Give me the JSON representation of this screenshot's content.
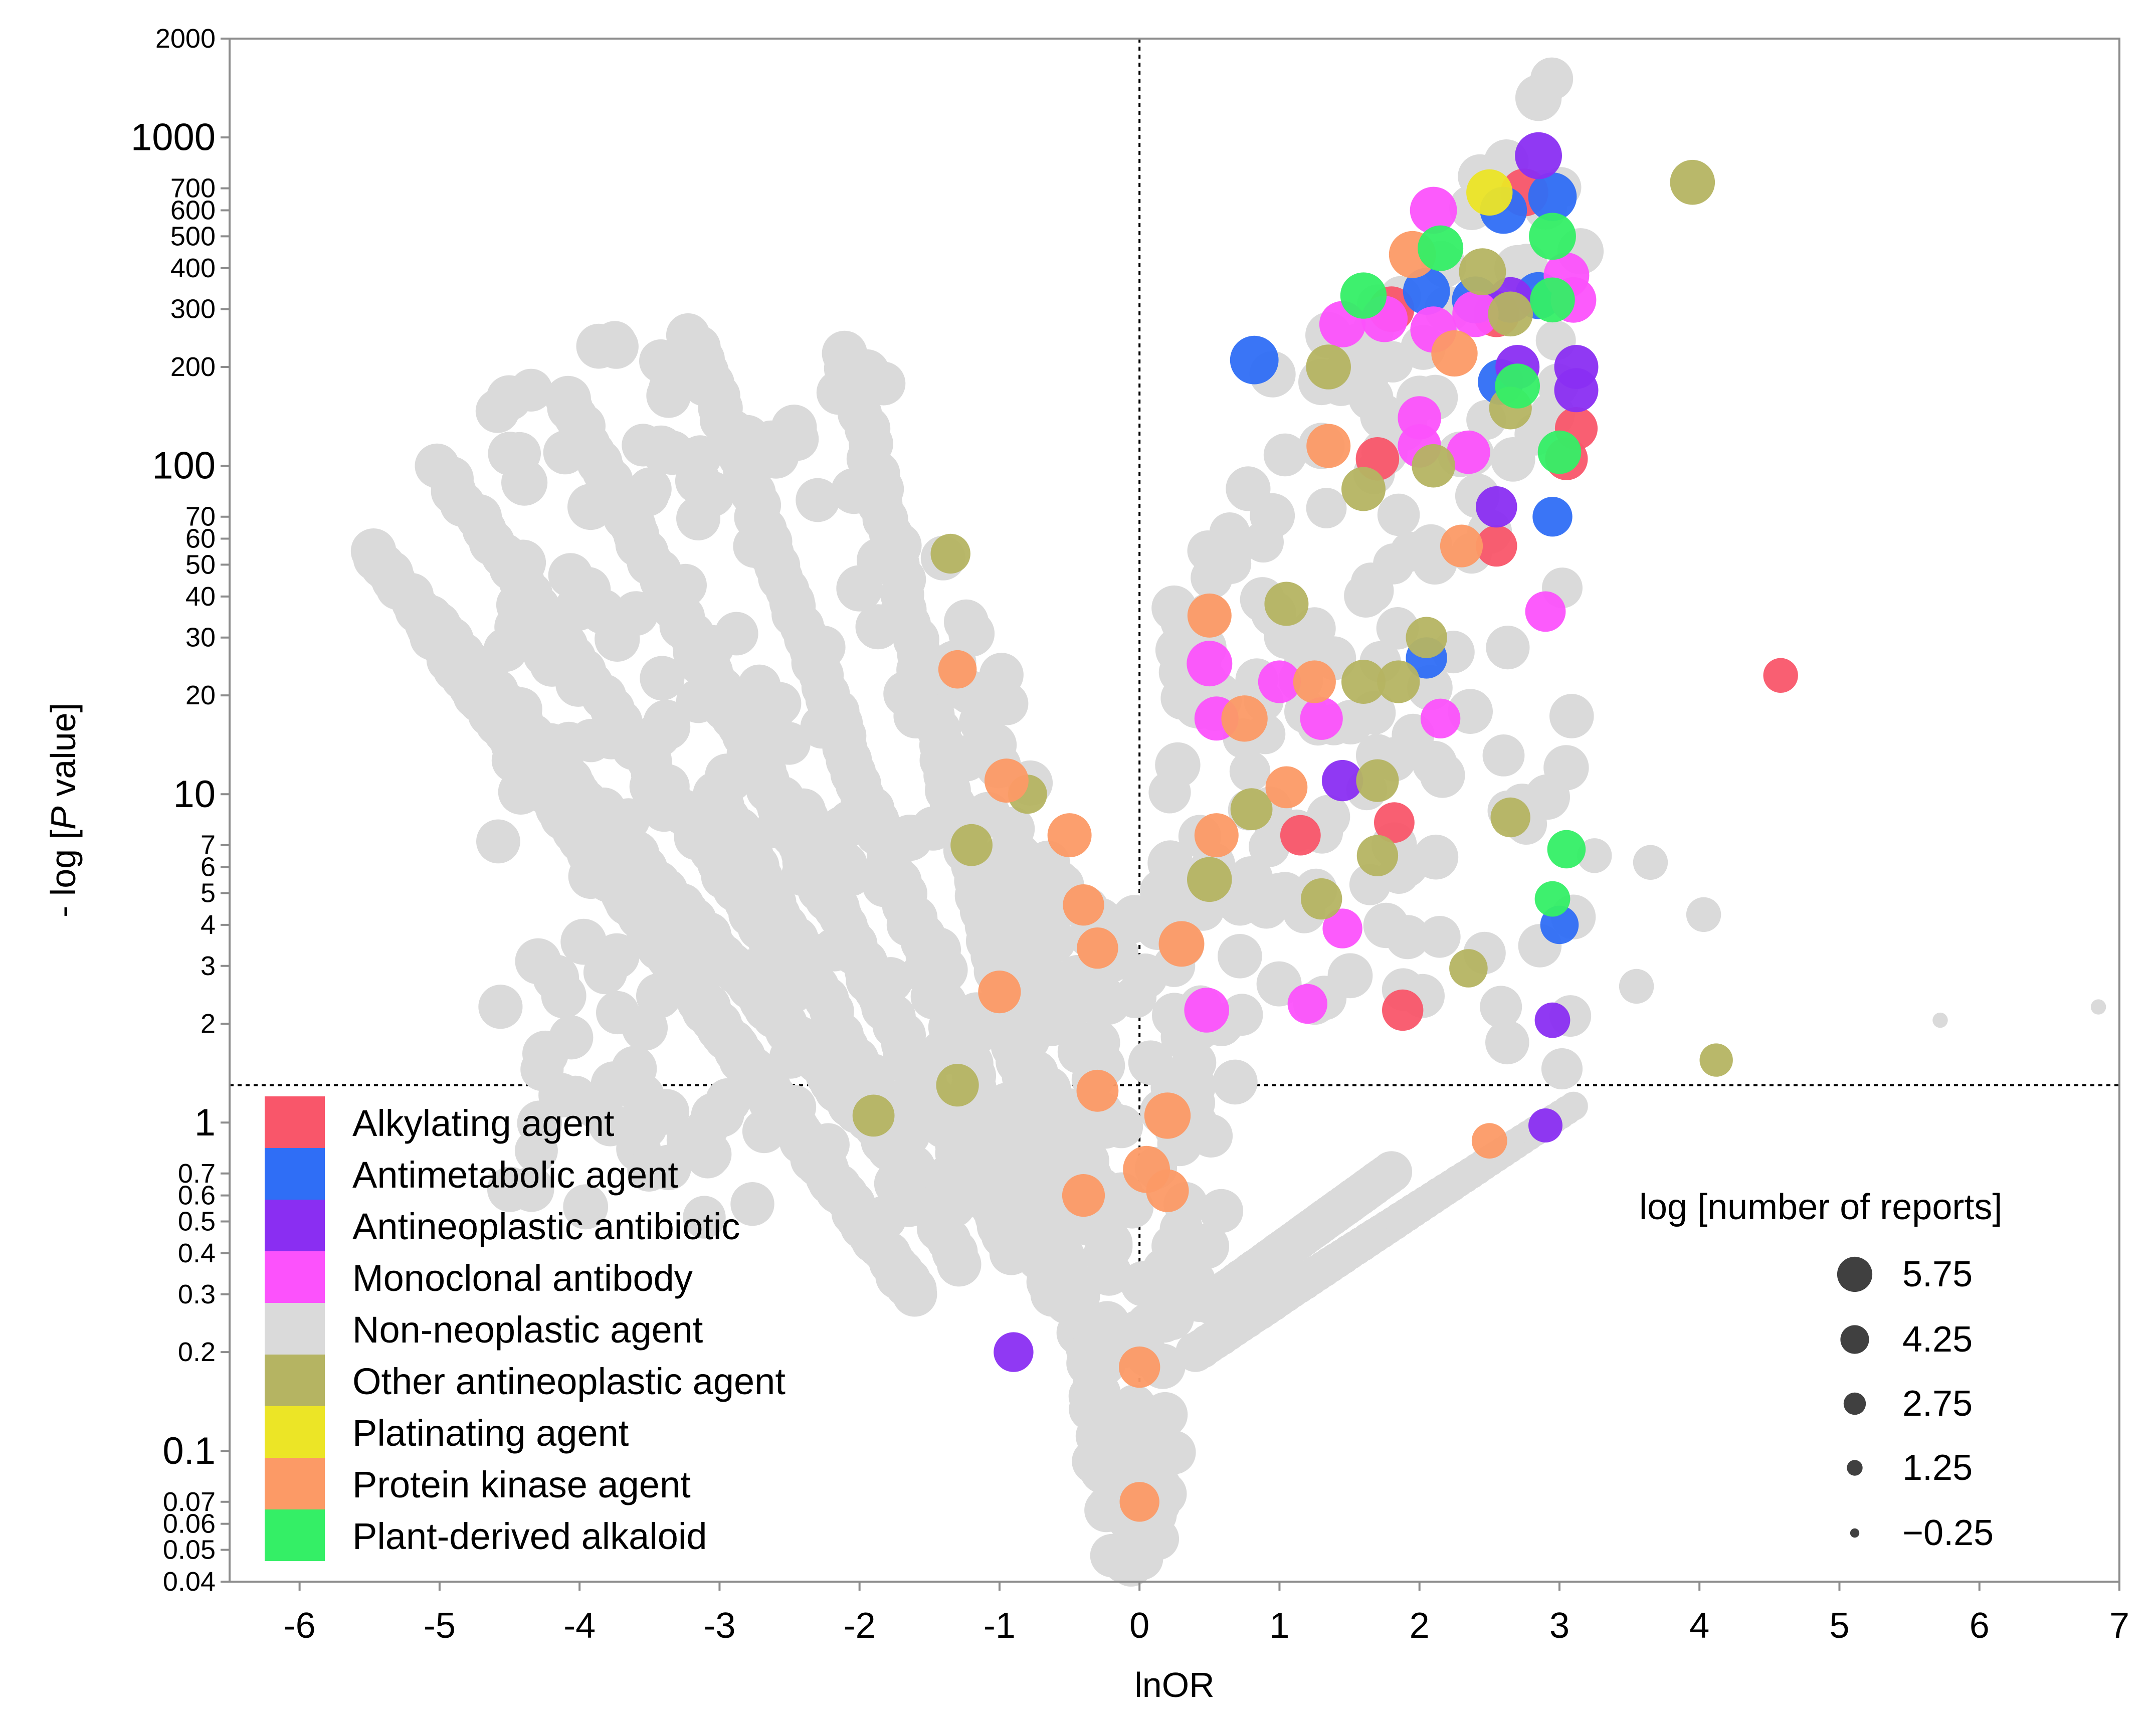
{
  "chart_data": {
    "type": "scatter",
    "xlabel": "lnOR",
    "ylabel": "- log [P value]",
    "ylabel_parts": {
      "prefix": "- log [",
      "italic": "P",
      "suffix": " value]"
    },
    "x_scale": "linear",
    "y_scale": "log",
    "xlim": [
      -6.5,
      7
    ],
    "ylim": [
      0.04,
      2000
    ],
    "x_ticks": [
      -6,
      -5,
      -4,
      -3,
      -2,
      -1,
      0,
      1,
      2,
      3,
      4,
      5,
      6,
      7
    ],
    "x_tick_labels": [
      "-6",
      "-5",
      "-4",
      "-3",
      "-2",
      "-1",
      "0",
      "1",
      "2",
      "3",
      "4",
      "5",
      "6",
      "7"
    ],
    "y_ticks": [
      {
        "value": 2000,
        "label": "2000",
        "major": false
      },
      {
        "value": 1000,
        "label": "1000",
        "major": true
      },
      {
        "value": 700,
        "label": "700",
        "major": false
      },
      {
        "value": 600,
        "label": "600",
        "major": false
      },
      {
        "value": 500,
        "label": "500",
        "major": false
      },
      {
        "value": 400,
        "label": "400",
        "major": false
      },
      {
        "value": 300,
        "label": "300",
        "major": false
      },
      {
        "value": 200,
        "label": "200",
        "major": false
      },
      {
        "value": 100,
        "label": "100",
        "major": true
      },
      {
        "value": 70,
        "label": "70",
        "major": false
      },
      {
        "value": 60,
        "label": "60",
        "major": false
      },
      {
        "value": 50,
        "label": "50",
        "major": false
      },
      {
        "value": 40,
        "label": "40",
        "major": false
      },
      {
        "value": 30,
        "label": "30",
        "major": false
      },
      {
        "value": 20,
        "label": "20",
        "major": false
      },
      {
        "value": 10,
        "label": "10",
        "major": true
      },
      {
        "value": 7,
        "label": "7",
        "major": false
      },
      {
        "value": 6,
        "label": "6",
        "major": false
      },
      {
        "value": 5,
        "label": "5",
        "major": false
      },
      {
        "value": 4,
        "label": "4",
        "major": false
      },
      {
        "value": 3,
        "label": "3",
        "major": false
      },
      {
        "value": 2,
        "label": "2",
        "major": false
      },
      {
        "value": 1,
        "label": "1",
        "major": true
      },
      {
        "value": 0.7,
        "label": "0.7",
        "major": false
      },
      {
        "value": 0.6,
        "label": "0.6",
        "major": false
      },
      {
        "value": 0.5,
        "label": "0.5",
        "major": false
      },
      {
        "value": 0.4,
        "label": "0.4",
        "major": false
      },
      {
        "value": 0.3,
        "label": "0.3",
        "major": false
      },
      {
        "value": 0.2,
        "label": "0.2",
        "major": false
      },
      {
        "value": 0.1,
        "label": "0.1",
        "major": true
      },
      {
        "value": 0.07,
        "label": "0.07",
        "major": false
      },
      {
        "value": 0.06,
        "label": "0.06",
        "major": false
      },
      {
        "value": 0.05,
        "label": "0.05",
        "major": false
      },
      {
        "value": 0.04,
        "label": "0.04",
        "major": false
      }
    ],
    "reference_lines": {
      "vertical_x": 0,
      "horizontal_y": 1.3
    },
    "colors": {
      "Alkylating agent": "#f9566a",
      "Antimetabolic agent": "#2f6ef6",
      "Antineoplastic antibiotic": "#8a2ef2",
      "Monoclonal antibody": "#fc52fc",
      "Non-neoplastic agent": "#dadada",
      "Other antineoplastic agent": "#b5b462",
      "Platinating agent": "#ece526",
      "Protein kinase agent": "#fc9a66",
      "Plant-derived alkaloid": "#34ef66"
    },
    "legend": {
      "position": "bottom-left",
      "entries": [
        "Alkylating agent",
        "Antimetabolic agent",
        "Antineoplastic antibiotic",
        "Monoclonal antibody",
        "Non-neoplastic agent",
        "Other antineoplastic agent",
        "Platinating agent",
        "Protein kinase agent",
        "Plant-derived alkaloid"
      ]
    },
    "size_legend": {
      "position": "bottom-right",
      "title": "log [number of reports]",
      "entries": [
        {
          "value": 5.75,
          "label": "5.75"
        },
        {
          "value": 4.25,
          "label": "4.25"
        },
        {
          "value": 2.75,
          "label": "2.75"
        },
        {
          "value": 1.25,
          "label": "1.25"
        },
        {
          "value": -0.25,
          "label": "−0.25"
        }
      ]
    },
    "series": [
      {
        "name": "Alkylating agent",
        "points": [
          {
            "x": 4.58,
            "y": 23,
            "size": 2.9
          },
          {
            "x": 3.05,
            "y": 105,
            "size": 4.0
          },
          {
            "x": 3.12,
            "y": 130,
            "size": 4.0
          },
          {
            "x": 1.82,
            "y": 8.2,
            "size": 3.7
          },
          {
            "x": 1.88,
            "y": 2.2,
            "size": 3.8
          },
          {
            "x": 2.55,
            "y": 57,
            "size": 3.8
          },
          {
            "x": 1.15,
            "y": 7.5,
            "size": 3.7
          },
          {
            "x": 1.8,
            "y": 300,
            "size": 4.4
          },
          {
            "x": 2.75,
            "y": 680,
            "size": 4.7
          },
          {
            "x": 2.55,
            "y": 290,
            "size": 4.5
          },
          {
            "x": 1.7,
            "y": 105,
            "size": 4.1
          }
        ]
      },
      {
        "name": "Antimetabolic agent",
        "points": [
          {
            "x": 0.82,
            "y": 210,
            "size": 4.8
          },
          {
            "x": 2.05,
            "y": 340,
            "size": 4.6
          },
          {
            "x": 2.95,
            "y": 660,
            "size": 4.8
          },
          {
            "x": 2.85,
            "y": 330,
            "size": 4.6
          },
          {
            "x": 2.58,
            "y": 180,
            "size": 4.4
          },
          {
            "x": 2.05,
            "y": 26,
            "size": 3.8
          },
          {
            "x": 3.0,
            "y": 4.0,
            "size": 3.4
          },
          {
            "x": 2.95,
            "y": 70,
            "size": 3.6
          },
          {
            "x": 2.6,
            "y": 600,
            "size": 4.6
          },
          {
            "x": 2.4,
            "y": 320,
            "size": 4.6
          }
        ]
      },
      {
        "name": "Antineoplastic antibiotic",
        "points": [
          {
            "x": 2.85,
            "y": 880,
            "size": 4.6
          },
          {
            "x": 3.12,
            "y": 200,
            "size": 4.2
          },
          {
            "x": 3.12,
            "y": 170,
            "size": 4.2
          },
          {
            "x": 2.7,
            "y": 200,
            "size": 4.2
          },
          {
            "x": 1.45,
            "y": 11,
            "size": 3.8
          },
          {
            "x": 2.95,
            "y": 2.05,
            "size": 3.0
          },
          {
            "x": -0.9,
            "y": 0.2,
            "size": 3.6
          },
          {
            "x": 2.55,
            "y": 75,
            "size": 3.8
          },
          {
            "x": 2.9,
            "y": 0.98,
            "size": 2.8
          },
          {
            "x": 2.65,
            "y": 320,
            "size": 4.4
          }
        ]
      },
      {
        "name": "Monoclonal antibody",
        "points": [
          {
            "x": 2.1,
            "y": 600,
            "size": 4.6
          },
          {
            "x": 1.45,
            "y": 270,
            "size": 4.5
          },
          {
            "x": 1.75,
            "y": 280,
            "size": 4.5
          },
          {
            "x": 2.1,
            "y": 260,
            "size": 4.5
          },
          {
            "x": 2.4,
            "y": 290,
            "size": 4.5
          },
          {
            "x": 3.05,
            "y": 380,
            "size": 4.4
          },
          {
            "x": 3.1,
            "y": 320,
            "size": 4.4
          },
          {
            "x": 2.0,
            "y": 140,
            "size": 4.1
          },
          {
            "x": 2.35,
            "y": 110,
            "size": 4.1
          },
          {
            "x": 2.0,
            "y": 115,
            "size": 4.1
          },
          {
            "x": 2.9,
            "y": 36,
            "size": 3.7
          },
          {
            "x": 0.5,
            "y": 25,
            "size": 4.4
          },
          {
            "x": 0.55,
            "y": 17,
            "size": 4.2
          },
          {
            "x": 1.0,
            "y": 22,
            "size": 4.0
          },
          {
            "x": 1.3,
            "y": 17,
            "size": 4.0
          },
          {
            "x": 1.45,
            "y": 3.9,
            "size": 3.6
          },
          {
            "x": 1.2,
            "y": 2.3,
            "size": 3.6
          },
          {
            "x": 0.48,
            "y": 2.2,
            "size": 4.3
          },
          {
            "x": 2.15,
            "y": 17,
            "size": 3.6
          }
        ]
      },
      {
        "name": "Non-neoplastic agent",
        "generated": true,
        "points": []
      },
      {
        "name": "Other antineoplastic agent",
        "points": [
          {
            "x": 3.95,
            "y": 730,
            "size": 4.3
          },
          {
            "x": 2.45,
            "y": 390,
            "size": 4.6
          },
          {
            "x": 1.35,
            "y": 200,
            "size": 4.3
          },
          {
            "x": 2.1,
            "y": 100,
            "size": 4.1
          },
          {
            "x": 2.65,
            "y": 150,
            "size": 4.0
          },
          {
            "x": 1.6,
            "y": 85,
            "size": 4.2
          },
          {
            "x": 1.05,
            "y": 38,
            "size": 4.2
          },
          {
            "x": 1.6,
            "y": 22,
            "size": 4.2
          },
          {
            "x": 1.85,
            "y": 22,
            "size": 4.0
          },
          {
            "x": 2.05,
            "y": 30,
            "size": 3.8
          },
          {
            "x": 2.65,
            "y": 8.5,
            "size": 3.6
          },
          {
            "x": 1.7,
            "y": 11,
            "size": 4.0
          },
          {
            "x": 0.8,
            "y": 9,
            "size": 3.9
          },
          {
            "x": 1.7,
            "y": 6.5,
            "size": 3.8
          },
          {
            "x": 0.5,
            "y": 5.5,
            "size": 4.3
          },
          {
            "x": 1.3,
            "y": 4.8,
            "size": 3.8
          },
          {
            "x": 2.35,
            "y": 2.95,
            "size": 3.4
          },
          {
            "x": -1.3,
            "y": 1.3,
            "size": 4.0
          },
          {
            "x": -1.9,
            "y": 1.05,
            "size": 3.9
          },
          {
            "x": 4.12,
            "y": 1.55,
            "size": 2.7
          },
          {
            "x": -0.8,
            "y": 10,
            "size": 3.5
          },
          {
            "x": -1.2,
            "y": 7,
            "size": 3.9
          },
          {
            "x": -1.35,
            "y": 54,
            "size": 3.6
          },
          {
            "x": 2.65,
            "y": 290,
            "size": 4.3
          }
        ]
      },
      {
        "name": "Platinating agent",
        "points": [
          {
            "x": 2.5,
            "y": 680,
            "size": 4.5
          }
        ]
      },
      {
        "name": "Protein kinase agent",
        "points": [
          {
            "x": 1.95,
            "y": 440,
            "size": 4.6
          },
          {
            "x": 2.25,
            "y": 220,
            "size": 4.5
          },
          {
            "x": 1.35,
            "y": 115,
            "size": 4.2
          },
          {
            "x": 2.3,
            "y": 57,
            "size": 4.0
          },
          {
            "x": 0.75,
            "y": 17,
            "size": 4.5
          },
          {
            "x": 1.25,
            "y": 22,
            "size": 4.0
          },
          {
            "x": 0.5,
            "y": 35,
            "size": 4.2
          },
          {
            "x": 1.05,
            "y": 10.5,
            "size": 3.9
          },
          {
            "x": 0.55,
            "y": 7.5,
            "size": 4.2
          },
          {
            "x": -0.95,
            "y": 11,
            "size": 4.2
          },
          {
            "x": -0.5,
            "y": 7.5,
            "size": 4.2
          },
          {
            "x": -0.4,
            "y": 4.6,
            "size": 3.8
          },
          {
            "x": -0.3,
            "y": 3.4,
            "size": 3.8
          },
          {
            "x": 0.3,
            "y": 3.5,
            "size": 4.4
          },
          {
            "x": -1.0,
            "y": 2.5,
            "size": 4.0
          },
          {
            "x": 0.2,
            "y": 1.05,
            "size": 4.5
          },
          {
            "x": -0.3,
            "y": 1.25,
            "size": 3.9
          },
          {
            "x": 0.05,
            "y": 0.72,
            "size": 4.6
          },
          {
            "x": 0.2,
            "y": 0.62,
            "size": 4.0
          },
          {
            "x": -0.4,
            "y": 0.6,
            "size": 4.0
          },
          {
            "x": 0.0,
            "y": 0.18,
            "size": 3.8
          },
          {
            "x": 0.0,
            "y": 0.07,
            "size": 3.6
          },
          {
            "x": -1.3,
            "y": 24,
            "size": 3.4
          },
          {
            "x": 2.5,
            "y": 0.88,
            "size": 3.0
          }
        ]
      },
      {
        "name": "Plant-derived alkaloid",
        "points": [
          {
            "x": 2.95,
            "y": 500,
            "size": 4.6
          },
          {
            "x": 2.15,
            "y": 460,
            "size": 4.4
          },
          {
            "x": 1.6,
            "y": 330,
            "size": 4.5
          },
          {
            "x": 2.95,
            "y": 320,
            "size": 4.3
          },
          {
            "x": 2.7,
            "y": 175,
            "size": 4.3
          },
          {
            "x": 3.0,
            "y": 110,
            "size": 4.1
          },
          {
            "x": 3.05,
            "y": 6.8,
            "size": 3.4
          },
          {
            "x": 2.95,
            "y": 4.8,
            "size": 3.0
          }
        ]
      }
    ]
  }
}
